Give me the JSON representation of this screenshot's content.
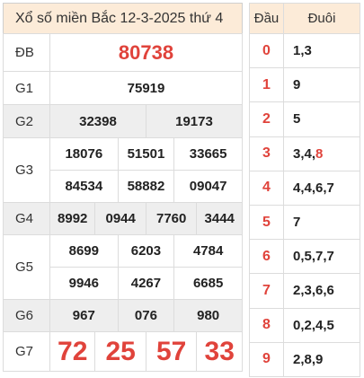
{
  "title": "Xổ số miền Bắc 12-3-2025 thứ 4",
  "prizes": {
    "db": {
      "label": "ĐB",
      "numbers": [
        "80738"
      ]
    },
    "g1": {
      "label": "G1",
      "numbers": [
        "75919"
      ]
    },
    "g2": {
      "label": "G2",
      "numbers": [
        "32398",
        "19173"
      ]
    },
    "g3": {
      "label": "G3",
      "numbers": [
        "18076",
        "51501",
        "33665",
        "84534",
        "58882",
        "09047"
      ]
    },
    "g4": {
      "label": "G4",
      "numbers": [
        "8992",
        "0944",
        "7760",
        "3444"
      ]
    },
    "g5": {
      "label": "G5",
      "numbers": [
        "8699",
        "6203",
        "4784",
        "9946",
        "4267",
        "6685"
      ]
    },
    "g6": {
      "label": "G6",
      "numbers": [
        "967",
        "076",
        "980"
      ]
    },
    "g7": {
      "label": "G7",
      "numbers": [
        "72",
        "25",
        "57",
        "33"
      ]
    }
  },
  "loto": {
    "header_dau": "Đầu",
    "header_duoi": "Đuôi",
    "rows": [
      {
        "dau": "0",
        "duoi": "1,3"
      },
      {
        "dau": "1",
        "duoi": "9"
      },
      {
        "dau": "2",
        "duoi": "5"
      },
      {
        "dau": "3",
        "duoi_plain": "3,4,",
        "duoi_highlight": "8"
      },
      {
        "dau": "4",
        "duoi": "4,4,6,7"
      },
      {
        "dau": "5",
        "duoi": "7"
      },
      {
        "dau": "6",
        "duoi": "0,5,7,7"
      },
      {
        "dau": "7",
        "duoi": "2,3,6,6"
      },
      {
        "dau": "8",
        "duoi": "0,2,4,5"
      },
      {
        "dau": "9",
        "duoi": "2,8,9"
      }
    ]
  },
  "colors": {
    "accent_red": "#e0433b",
    "header_bg": "#fcebd8",
    "shaded_row_bg": "#eeeeee"
  }
}
